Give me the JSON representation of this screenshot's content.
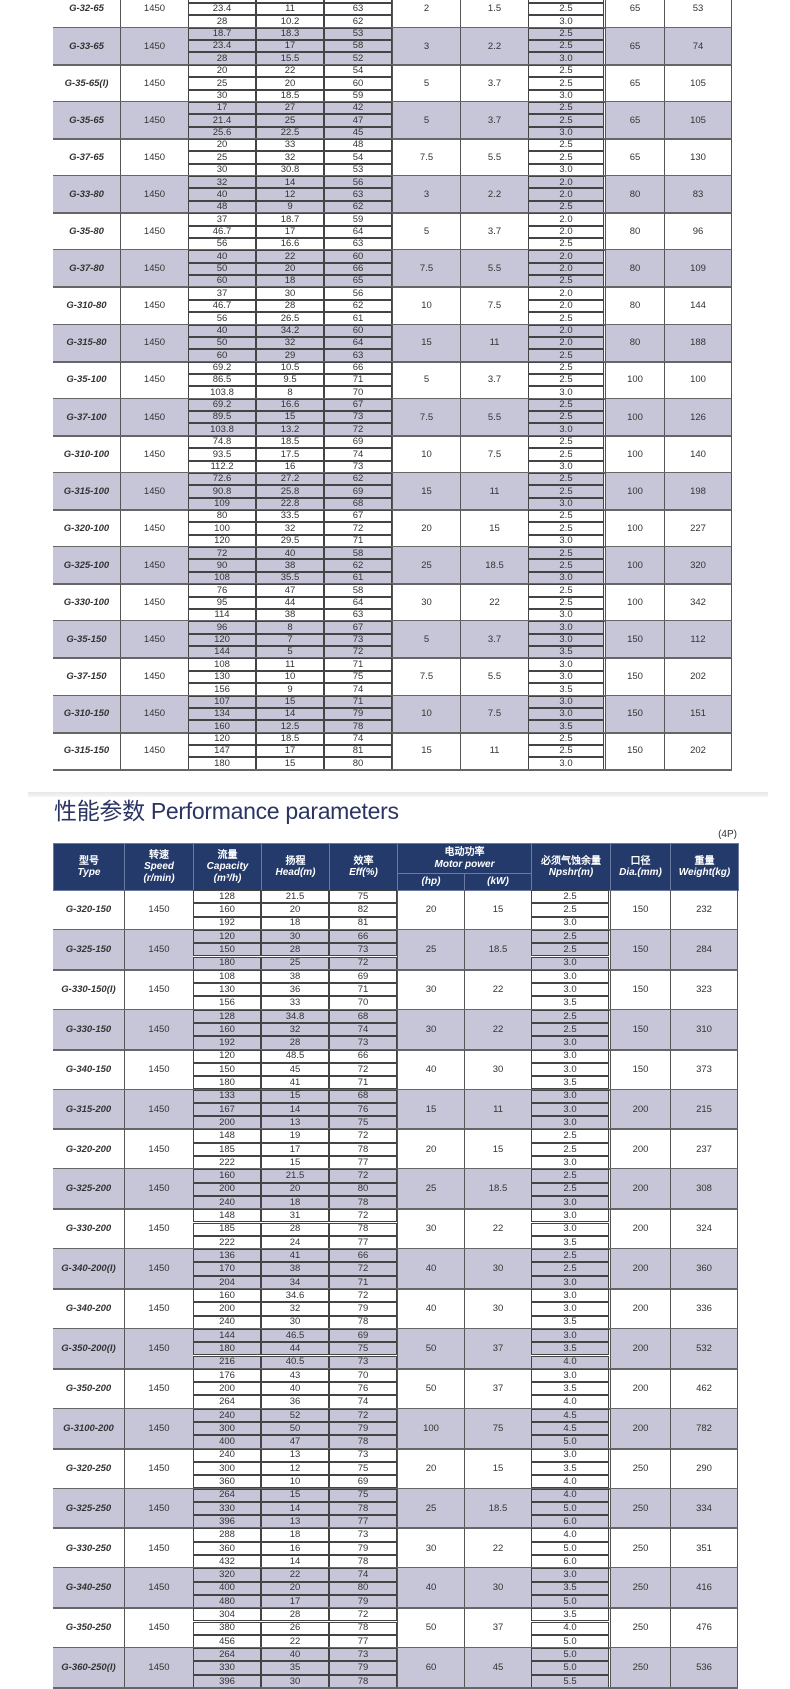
{
  "section_title": "性能参数 Performance parameters",
  "pole_note": "(4P)",
  "header": {
    "type_cn": "型号",
    "type_en": "Type",
    "speed_cn": "转速",
    "speed_en": "Speed",
    "speed_unit": "(r/min)",
    "capacity_cn": "流量",
    "capacity_en": "Capacity",
    "capacity_unit": "(m³/h)",
    "head_cn": "扬程",
    "head_en": "Head(m)",
    "eff_cn": "效率",
    "eff_en": "Eff(%)",
    "motor_cn": "电动功率",
    "motor_en": "Motor power",
    "hp": "(hp)",
    "kw": "(kW)",
    "npsh_cn": "必须气蚀余量",
    "npsh_en": "Npshr(m)",
    "dia_cn": "口径",
    "dia_en": "Dia.(mm)",
    "weight_cn": "重量",
    "weight_en": "Weight(kg)"
  },
  "colors": {
    "header_bg": "#233a6b",
    "row_shade": "#c6c6d8",
    "title": "#2a3563"
  },
  "table_top": [
    {
      "type": "G-32-65",
      "speed": "1450",
      "rows": [
        [
          "",
          "",
          ""
        ],
        [
          "23.4",
          "11",
          "63"
        ],
        [
          "28",
          "10.2",
          "62"
        ]
      ],
      "hp": "2",
      "kw": "1.5",
      "npsh": [
        "",
        "2.5",
        "3.0"
      ],
      "dia": "65",
      "weight": "53"
    },
    {
      "type": "G-33-65",
      "speed": "1450",
      "rows": [
        [
          "18.7",
          "18.3",
          "53"
        ],
        [
          "23.4",
          "17",
          "58"
        ],
        [
          "28",
          "15.5",
          "52"
        ]
      ],
      "hp": "3",
      "kw": "2.2",
      "npsh": [
        "2.5",
        "2.5",
        "3.0"
      ],
      "dia": "65",
      "weight": "74"
    },
    {
      "type": "G-35-65(I)",
      "speed": "1450",
      "rows": [
        [
          "20",
          "22",
          "54"
        ],
        [
          "25",
          "20",
          "60"
        ],
        [
          "30",
          "18.5",
          "59"
        ]
      ],
      "hp": "5",
      "kw": "3.7",
      "npsh": [
        "2.5",
        "2.5",
        "3.0"
      ],
      "dia": "65",
      "weight": "105"
    },
    {
      "type": "G-35-65",
      "speed": "1450",
      "rows": [
        [
          "17",
          "27",
          "42"
        ],
        [
          "21.4",
          "25",
          "47"
        ],
        [
          "25.6",
          "22.5",
          "45"
        ]
      ],
      "hp": "5",
      "kw": "3.7",
      "npsh": [
        "2.5",
        "2.5",
        "3.0"
      ],
      "dia": "65",
      "weight": "105"
    },
    {
      "type": "G-37-65",
      "speed": "1450",
      "rows": [
        [
          "20",
          "33",
          "48"
        ],
        [
          "25",
          "32",
          "54"
        ],
        [
          "30",
          "30.8",
          "53"
        ]
      ],
      "hp": "7.5",
      "kw": "5.5",
      "npsh": [
        "2.5",
        "2.5",
        "3.0"
      ],
      "dia": "65",
      "weight": "130"
    },
    {
      "type": "G-33-80",
      "speed": "1450",
      "rows": [
        [
          "32",
          "14",
          "56"
        ],
        [
          "40",
          "12",
          "63"
        ],
        [
          "48",
          "9",
          "62"
        ]
      ],
      "hp": "3",
      "kw": "2.2",
      "npsh": [
        "2.0",
        "2.0",
        "2.5"
      ],
      "dia": "80",
      "weight": "83"
    },
    {
      "type": "G-35-80",
      "speed": "1450",
      "rows": [
        [
          "37",
          "18.7",
          "59"
        ],
        [
          "46.7",
          "17",
          "64"
        ],
        [
          "56",
          "16.6",
          "63"
        ]
      ],
      "hp": "5",
      "kw": "3.7",
      "npsh": [
        "2.0",
        "2.0",
        "2.5"
      ],
      "dia": "80",
      "weight": "96"
    },
    {
      "type": "G-37-80",
      "speed": "1450",
      "rows": [
        [
          "40",
          "22",
          "60"
        ],
        [
          "50",
          "20",
          "66"
        ],
        [
          "60",
          "18",
          "65"
        ]
      ],
      "hp": "7.5",
      "kw": "5.5",
      "npsh": [
        "2.0",
        "2.0",
        "2.5"
      ],
      "dia": "80",
      "weight": "109"
    },
    {
      "type": "G-310-80",
      "speed": "1450",
      "rows": [
        [
          "37",
          "30",
          "56"
        ],
        [
          "46.7",
          "28",
          "62"
        ],
        [
          "56",
          "26.5",
          "61"
        ]
      ],
      "hp": "10",
      "kw": "7.5",
      "npsh": [
        "2.0",
        "2.0",
        "2.5"
      ],
      "dia": "80",
      "weight": "144"
    },
    {
      "type": "G-315-80",
      "speed": "1450",
      "rows": [
        [
          "40",
          "34.2",
          "60"
        ],
        [
          "50",
          "32",
          "64"
        ],
        [
          "60",
          "29",
          "63"
        ]
      ],
      "hp": "15",
      "kw": "11",
      "npsh": [
        "2.0",
        "2.0",
        "2.5"
      ],
      "dia": "80",
      "weight": "188"
    },
    {
      "type": "G-35-100",
      "speed": "1450",
      "rows": [
        [
          "69.2",
          "10.5",
          "66"
        ],
        [
          "86.5",
          "9.5",
          "71"
        ],
        [
          "103.8",
          "8",
          "70"
        ]
      ],
      "hp": "5",
      "kw": "3.7",
      "npsh": [
        "2.5",
        "2.5",
        "3.0"
      ],
      "dia": "100",
      "weight": "100"
    },
    {
      "type": "G-37-100",
      "speed": "1450",
      "rows": [
        [
          "69.2",
          "16.6",
          "67"
        ],
        [
          "89.5",
          "15",
          "73"
        ],
        [
          "103.8",
          "13.2",
          "72"
        ]
      ],
      "hp": "7.5",
      "kw": "5.5",
      "npsh": [
        "2.5",
        "2.5",
        "3.0"
      ],
      "dia": "100",
      "weight": "126"
    },
    {
      "type": "G-310-100",
      "speed": "1450",
      "rows": [
        [
          "74.8",
          "18.5",
          "69"
        ],
        [
          "93.5",
          "17.5",
          "74"
        ],
        [
          "112.2",
          "16",
          "73"
        ]
      ],
      "hp": "10",
      "kw": "7.5",
      "npsh": [
        "2.5",
        "2.5",
        "3.0"
      ],
      "dia": "100",
      "weight": "140"
    },
    {
      "type": "G-315-100",
      "speed": "1450",
      "rows": [
        [
          "72.6",
          "27.2",
          "62"
        ],
        [
          "90.8",
          "25.8",
          "69"
        ],
        [
          "109",
          "22.8",
          "68"
        ]
      ],
      "hp": "15",
      "kw": "11",
      "npsh": [
        "2.5",
        "2.5",
        "3.0"
      ],
      "dia": "100",
      "weight": "198"
    },
    {
      "type": "G-320-100",
      "speed": "1450",
      "rows": [
        [
          "80",
          "33.5",
          "67"
        ],
        [
          "100",
          "32",
          "72"
        ],
        [
          "120",
          "29.5",
          "71"
        ]
      ],
      "hp": "20",
      "kw": "15",
      "npsh": [
        "2.5",
        "2.5",
        "3.0"
      ],
      "dia": "100",
      "weight": "227"
    },
    {
      "type": "G-325-100",
      "speed": "1450",
      "rows": [
        [
          "72",
          "40",
          "58"
        ],
        [
          "90",
          "38",
          "62"
        ],
        [
          "108",
          "35.5",
          "61"
        ]
      ],
      "hp": "25",
      "kw": "18.5",
      "npsh": [
        "2.5",
        "2.5",
        "3.0"
      ],
      "dia": "100",
      "weight": "320"
    },
    {
      "type": "G-330-100",
      "speed": "1450",
      "rows": [
        [
          "76",
          "47",
          "58"
        ],
        [
          "95",
          "44",
          "64"
        ],
        [
          "114",
          "38",
          "63"
        ]
      ],
      "hp": "30",
      "kw": "22",
      "npsh": [
        "2.5",
        "2.5",
        "3.0"
      ],
      "dia": "100",
      "weight": "342"
    },
    {
      "type": "G-35-150",
      "speed": "1450",
      "rows": [
        [
          "96",
          "8",
          "67"
        ],
        [
          "120",
          "7",
          "73"
        ],
        [
          "144",
          "5",
          "72"
        ]
      ],
      "hp": "5",
      "kw": "3.7",
      "npsh": [
        "3.0",
        "3.0",
        "3.5"
      ],
      "dia": "150",
      "weight": "112"
    },
    {
      "type": "G-37-150",
      "speed": "1450",
      "rows": [
        [
          "108",
          "11",
          "71"
        ],
        [
          "130",
          "10",
          "75"
        ],
        [
          "156",
          "9",
          "74"
        ]
      ],
      "hp": "7.5",
      "kw": "5.5",
      "npsh": [
        "3.0",
        "3.0",
        "3.5"
      ],
      "dia": "150",
      "weight": "202"
    },
    {
      "type": "G-310-150",
      "speed": "1450",
      "rows": [
        [
          "107",
          "15",
          "71"
        ],
        [
          "134",
          "14",
          "79"
        ],
        [
          "160",
          "12.5",
          "78"
        ]
      ],
      "hp": "10",
      "kw": "7.5",
      "npsh": [
        "3.0",
        "3.0",
        "3.5"
      ],
      "dia": "150",
      "weight": "151"
    },
    {
      "type": "G-315-150",
      "speed": "1450",
      "rows": [
        [
          "120",
          "18.5",
          "74"
        ],
        [
          "147",
          "17",
          "81"
        ],
        [
          "180",
          "15",
          "80"
        ]
      ],
      "hp": "15",
      "kw": "11",
      "npsh": [
        "2.5",
        "2.5",
        "3.0"
      ],
      "dia": "150",
      "weight": "202"
    }
  ],
  "table_bottom": [
    {
      "type": "G-320-150",
      "speed": "1450",
      "rows": [
        [
          "128",
          "21.5",
          "75"
        ],
        [
          "160",
          "20",
          "82"
        ],
        [
          "192",
          "18",
          "81"
        ]
      ],
      "hp": "20",
      "kw": "15",
      "npsh": [
        "2.5",
        "2.5",
        "3.0"
      ],
      "dia": "150",
      "weight": "232"
    },
    {
      "type": "G-325-150",
      "speed": "1450",
      "rows": [
        [
          "120",
          "30",
          "66"
        ],
        [
          "150",
          "28",
          "73"
        ],
        [
          "180",
          "25",
          "72"
        ]
      ],
      "hp": "25",
      "kw": "18.5",
      "npsh": [
        "2.5",
        "2.5",
        "3.0"
      ],
      "dia": "150",
      "weight": "284"
    },
    {
      "type": "G-330-150(I)",
      "speed": "1450",
      "rows": [
        [
          "108",
          "38",
          "69"
        ],
        [
          "130",
          "36",
          "71"
        ],
        [
          "156",
          "33",
          "70"
        ]
      ],
      "hp": "30",
      "kw": "22",
      "npsh": [
        "3.0",
        "3.0",
        "3.5"
      ],
      "dia": "150",
      "weight": "323"
    },
    {
      "type": "G-330-150",
      "speed": "1450",
      "rows": [
        [
          "128",
          "34.8",
          "68"
        ],
        [
          "160",
          "32",
          "74"
        ],
        [
          "192",
          "28",
          "73"
        ]
      ],
      "hp": "30",
      "kw": "22",
      "npsh": [
        "2.5",
        "2.5",
        "3.0"
      ],
      "dia": "150",
      "weight": "310"
    },
    {
      "type": "G-340-150",
      "speed": "1450",
      "rows": [
        [
          "120",
          "48.5",
          "66"
        ],
        [
          "150",
          "45",
          "72"
        ],
        [
          "180",
          "41",
          "71"
        ]
      ],
      "hp": "40",
      "kw": "30",
      "npsh": [
        "3.0",
        "3.0",
        "3.5"
      ],
      "dia": "150",
      "weight": "373"
    },
    {
      "type": "G-315-200",
      "speed": "1450",
      "rows": [
        [
          "133",
          "15",
          "68"
        ],
        [
          "167",
          "14",
          "76"
        ],
        [
          "200",
          "13",
          "75"
        ]
      ],
      "hp": "15",
      "kw": "11",
      "npsh": [
        "3.0",
        "3.0",
        "3.0"
      ],
      "dia": "200",
      "weight": "215"
    },
    {
      "type": "G-320-200",
      "speed": "1450",
      "rows": [
        [
          "148",
          "19",
          "72"
        ],
        [
          "185",
          "17",
          "78"
        ],
        [
          "222",
          "15",
          "77"
        ]
      ],
      "hp": "20",
      "kw": "15",
      "npsh": [
        "2.5",
        "2.5",
        "3.0"
      ],
      "dia": "200",
      "weight": "237"
    },
    {
      "type": "G-325-200",
      "speed": "1450",
      "rows": [
        [
          "160",
          "21.5",
          "72"
        ],
        [
          "200",
          "20",
          "80"
        ],
        [
          "240",
          "18",
          "78"
        ]
      ],
      "hp": "25",
      "kw": "18.5",
      "npsh": [
        "2.5",
        "2.5",
        "3.0"
      ],
      "dia": "200",
      "weight": "308"
    },
    {
      "type": "G-330-200",
      "speed": "1450",
      "rows": [
        [
          "148",
          "31",
          "72"
        ],
        [
          "185",
          "28",
          "78"
        ],
        [
          "222",
          "24",
          "77"
        ]
      ],
      "hp": "30",
      "kw": "22",
      "npsh": [
        "3.0",
        "3.0",
        "3.5"
      ],
      "dia": "200",
      "weight": "324"
    },
    {
      "type": "G-340-200(I)",
      "speed": "1450",
      "rows": [
        [
          "136",
          "41",
          "66"
        ],
        [
          "170",
          "38",
          "72"
        ],
        [
          "204",
          "34",
          "71"
        ]
      ],
      "hp": "40",
      "kw": "30",
      "npsh": [
        "2.5",
        "2.5",
        "3.0"
      ],
      "dia": "200",
      "weight": "360"
    },
    {
      "type": "G-340-200",
      "speed": "1450",
      "rows": [
        [
          "160",
          "34.6",
          "72"
        ],
        [
          "200",
          "32",
          "79"
        ],
        [
          "240",
          "30",
          "78"
        ]
      ],
      "hp": "40",
      "kw": "30",
      "npsh": [
        "3.0",
        "3.0",
        "3.5"
      ],
      "dia": "200",
      "weight": "336"
    },
    {
      "type": "G-350-200(I)",
      "speed": "1450",
      "rows": [
        [
          "144",
          "46.5",
          "69"
        ],
        [
          "180",
          "44",
          "75"
        ],
        [
          "216",
          "40.5",
          "73"
        ]
      ],
      "hp": "50",
      "kw": "37",
      "npsh": [
        "3.0",
        "3.5",
        "4.0"
      ],
      "dia": "200",
      "weight": "532"
    },
    {
      "type": "G-350-200",
      "speed": "1450",
      "rows": [
        [
          "176",
          "43",
          "70"
        ],
        [
          "200",
          "40",
          "76"
        ],
        [
          "264",
          "36",
          "74"
        ]
      ],
      "hp": "50",
      "kw": "37",
      "npsh": [
        "3.0",
        "3.5",
        "4.0"
      ],
      "dia": "200",
      "weight": "462"
    },
    {
      "type": "G-3100-200",
      "speed": "1450",
      "rows": [
        [
          "240",
          "52",
          "72"
        ],
        [
          "300",
          "50",
          "79"
        ],
        [
          "400",
          "47",
          "78"
        ]
      ],
      "hp": "100",
      "kw": "75",
      "npsh": [
        "4.5",
        "4.5",
        "5.0"
      ],
      "dia": "200",
      "weight": "782"
    },
    {
      "type": "G-320-250",
      "speed": "1450",
      "rows": [
        [
          "240",
          "13",
          "73"
        ],
        [
          "300",
          "12",
          "75"
        ],
        [
          "360",
          "10",
          "69"
        ]
      ],
      "hp": "20",
      "kw": "15",
      "npsh": [
        "3.0",
        "3.5",
        "4.0"
      ],
      "dia": "250",
      "weight": "290"
    },
    {
      "type": "G-325-250",
      "speed": "1450",
      "rows": [
        [
          "264",
          "15",
          "75"
        ],
        [
          "330",
          "14",
          "78"
        ],
        [
          "396",
          "13",
          "77"
        ]
      ],
      "hp": "25",
      "kw": "18.5",
      "npsh": [
        "4.0",
        "5.0",
        "6.0"
      ],
      "dia": "250",
      "weight": "334"
    },
    {
      "type": "G-330-250",
      "speed": "1450",
      "rows": [
        [
          "288",
          "18",
          "73"
        ],
        [
          "360",
          "16",
          "79"
        ],
        [
          "432",
          "14",
          "78"
        ]
      ],
      "hp": "30",
      "kw": "22",
      "npsh": [
        "4.0",
        "5.0",
        "6.0"
      ],
      "dia": "250",
      "weight": "351"
    },
    {
      "type": "G-340-250",
      "speed": "1450",
      "rows": [
        [
          "320",
          "22",
          "74"
        ],
        [
          "400",
          "20",
          "80"
        ],
        [
          "480",
          "17",
          "79"
        ]
      ],
      "hp": "40",
      "kw": "30",
      "npsh": [
        "3.0",
        "3.5",
        "5.0"
      ],
      "dia": "250",
      "weight": "416"
    },
    {
      "type": "G-350-250",
      "speed": "1450",
      "rows": [
        [
          "304",
          "28",
          "72"
        ],
        [
          "380",
          "26",
          "78"
        ],
        [
          "456",
          "22",
          "77"
        ]
      ],
      "hp": "50",
      "kw": "37",
      "npsh": [
        "3.5",
        "4.0",
        "5.0"
      ],
      "dia": "250",
      "weight": "476"
    },
    {
      "type": "G-360-250(I)",
      "speed": "1450",
      "rows": [
        [
          "264",
          "40",
          "73"
        ],
        [
          "330",
          "35",
          "79"
        ],
        [
          "396",
          "30",
          "78"
        ]
      ],
      "hp": "60",
      "kw": "45",
      "npsh": [
        "5.0",
        "5.0",
        "5.5"
      ],
      "dia": "250",
      "weight": "536"
    }
  ]
}
